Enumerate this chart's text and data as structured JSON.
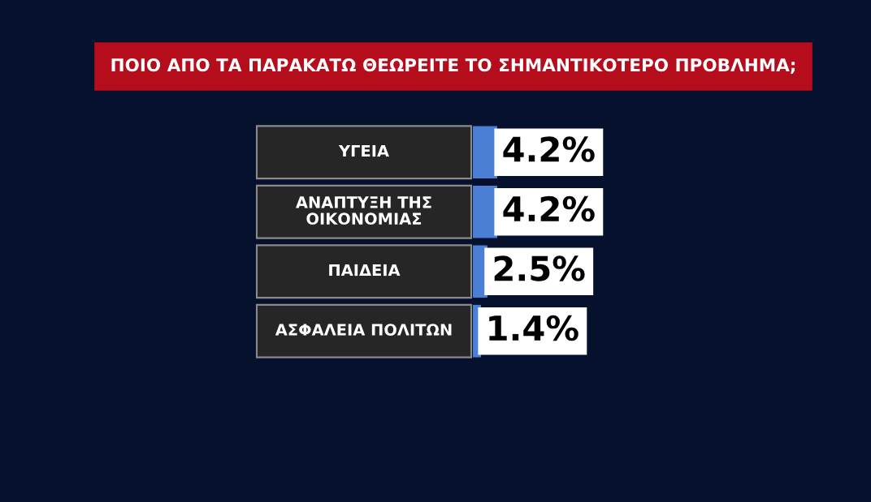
{
  "chart_data": {
    "type": "bar",
    "orientation": "horizontal",
    "title": "ΠΟΙΟ ΑΠΟ ΤΑ ΠΑΡΑΚΑΤΩ ΘΕΩΡΕΙΤΕ ΤΟ ΣΗΜΑΝΤΙΚΟΤΕΡΟ ΠΡΟΒΛΗΜΑ;",
    "categories": [
      "ΥΓΕΙΑ",
      "ΑΝΑΠΤΥΞΗ ΤΗΣ ΟΙΚΟΝΟΜΙΑΣ",
      "ΠΑΙΔΕΙΑ",
      "ΑΣΦΑΛΕΙΑ ΠΟΛΙΤΩΝ"
    ],
    "values": [
      4.2,
      4.2,
      2.5,
      1.4
    ],
    "value_labels": [
      "4.2%",
      "4.2%",
      "2.5%",
      "1.4%"
    ],
    "color": "#4a7fd4"
  }
}
